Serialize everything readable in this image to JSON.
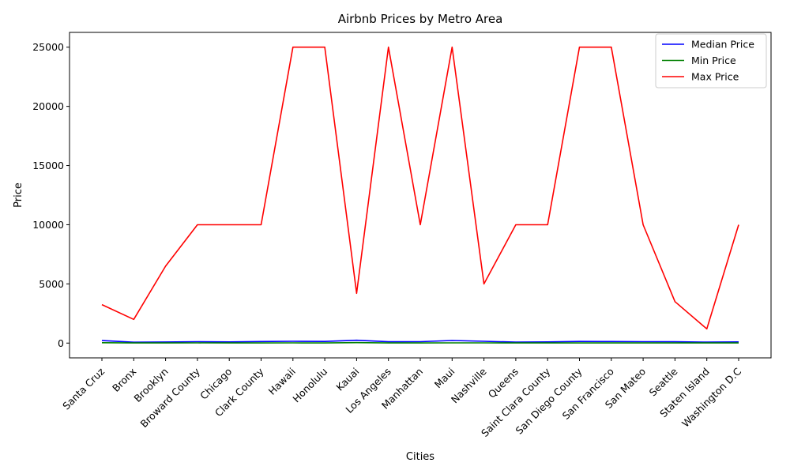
{
  "chart_data": {
    "type": "line",
    "title": "Airbnb Prices by Metro Area",
    "xlabel": "Cities",
    "ylabel": "Price",
    "categories": [
      "Santa Cruz",
      "Bronx",
      "Brooklyn",
      "Broward County",
      "Chicago",
      "Clark County",
      "Hawaii",
      "Honolulu",
      "Kauai",
      "Los Angeles",
      "Manhattan",
      "Maui",
      "Nashville",
      "Queens",
      "Saint Clara County",
      "San Diego County",
      "San Francisco",
      "San Mateo",
      "Seattle",
      "Staten Island",
      "Washington D.C"
    ],
    "series": [
      {
        "name": "Median Price",
        "color": "#0000ff",
        "values": [
          210,
          70,
          90,
          120,
          100,
          130,
          150,
          140,
          240,
          110,
          120,
          220,
          150,
          80,
          100,
          140,
          130,
          120,
          110,
          80,
          100
        ]
      },
      {
        "name": "Min Price",
        "color": "#008000",
        "values": [
          30,
          10,
          10,
          20,
          10,
          10,
          15,
          10,
          40,
          10,
          10,
          20,
          20,
          10,
          10,
          10,
          10,
          10,
          10,
          10,
          10
        ]
      },
      {
        "name": "Max Price",
        "color": "#ff0000",
        "values": [
          3250,
          2000,
          6500,
          10000,
          10000,
          10000,
          25000,
          25000,
          4200,
          25000,
          10000,
          25000,
          5000,
          10000,
          10000,
          25000,
          25000,
          10000,
          3500,
          1200,
          10000
        ]
      }
    ],
    "yticks": [
      0,
      5000,
      10000,
      15000,
      20000,
      25000
    ],
    "ylim": [
      -1250,
      26250
    ],
    "grid": false,
    "legend_position": "top-right"
  }
}
